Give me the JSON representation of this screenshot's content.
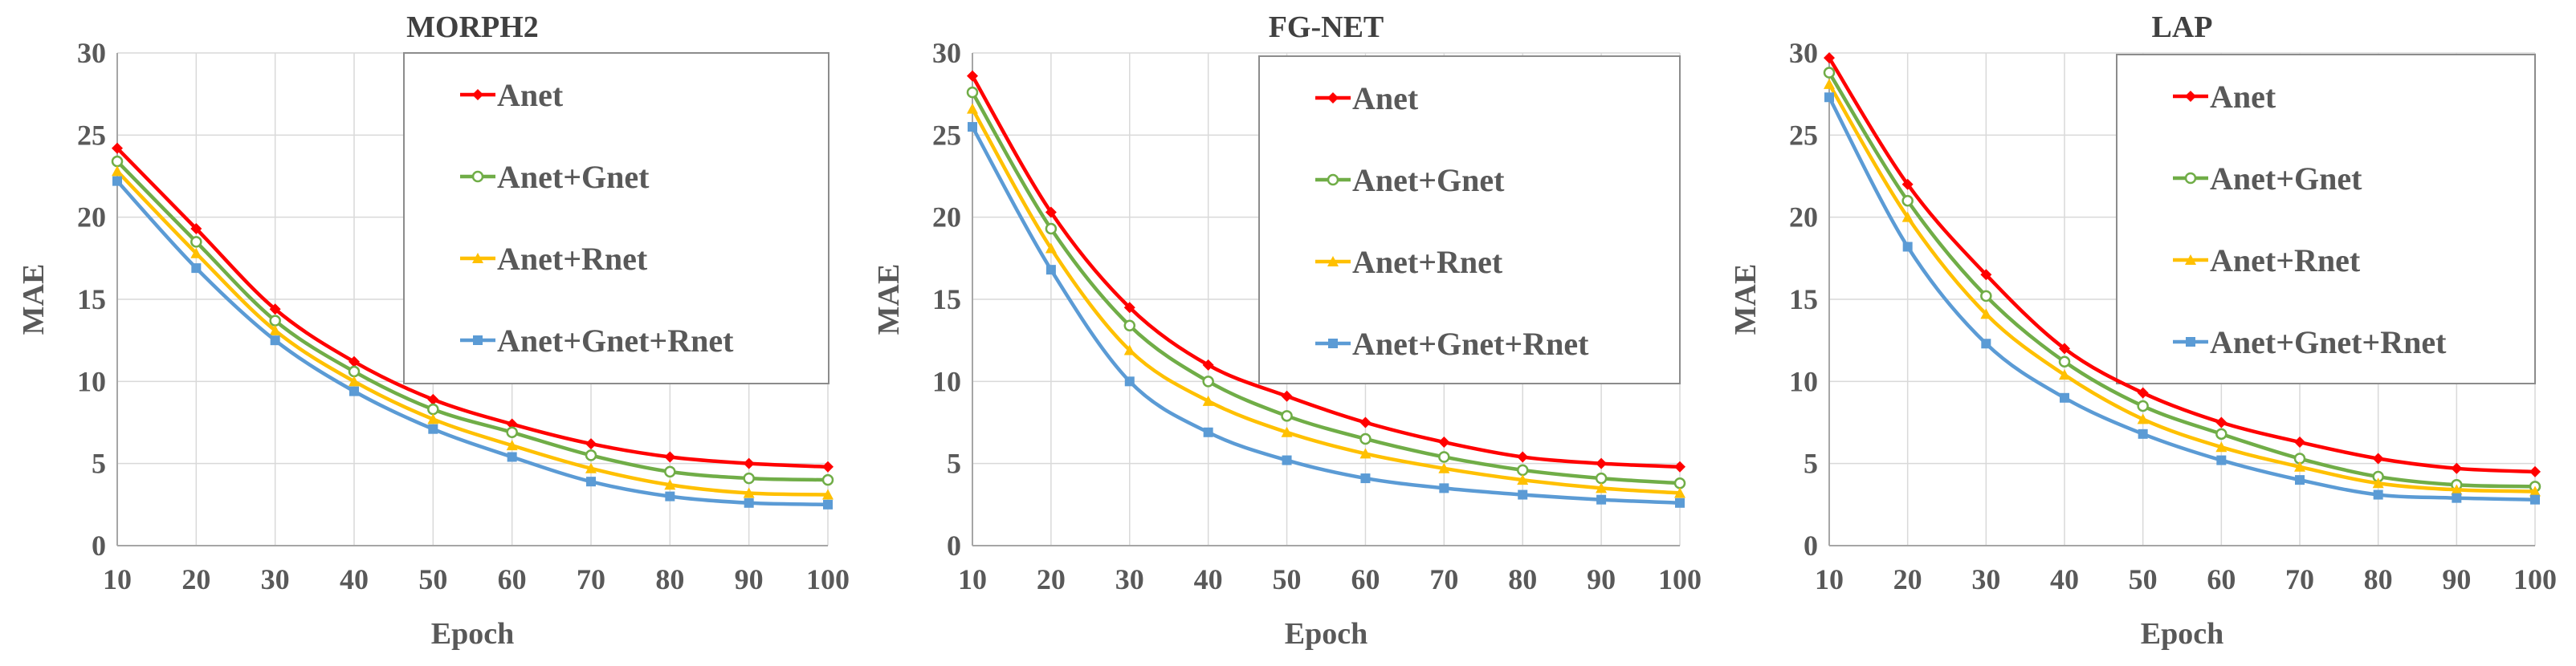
{
  "colors": {
    "Anet": "#ff0000",
    "Anet+Gnet": "#70ad47",
    "Anet+Rnet": "#ffc000",
    "Anet+Gnet+Rnet": "#5b9bd5"
  },
  "chart_data": [
    {
      "type": "line",
      "title": "MORPH2",
      "xlabel": "Epoch",
      "ylabel": "MAE",
      "x": [
        10,
        20,
        30,
        40,
        50,
        60,
        70,
        80,
        90,
        100
      ],
      "xlim": [
        10,
        100
      ],
      "ylim": [
        0,
        30
      ],
      "yticks": [
        0,
        5,
        10,
        15,
        20,
        25,
        30
      ],
      "legend_position": "top-right",
      "series": [
        {
          "name": "Anet",
          "marker": "diamond",
          "values": [
            24.2,
            19.3,
            14.4,
            11.2,
            8.9,
            7.4,
            6.2,
            5.4,
            5.0,
            4.8
          ]
        },
        {
          "name": "Anet+Gnet",
          "marker": "circle",
          "values": [
            23.4,
            18.5,
            13.7,
            10.6,
            8.3,
            6.9,
            5.5,
            4.5,
            4.1,
            4.0
          ]
        },
        {
          "name": "Anet+Rnet",
          "marker": "triangle",
          "values": [
            22.8,
            17.8,
            13.1,
            10.0,
            7.7,
            6.1,
            4.7,
            3.7,
            3.2,
            3.1
          ]
        },
        {
          "name": "Anet+Gnet+Rnet",
          "marker": "square",
          "values": [
            22.2,
            16.9,
            12.5,
            9.4,
            7.1,
            5.4,
            3.9,
            3.0,
            2.6,
            2.5
          ]
        }
      ]
    },
    {
      "type": "line",
      "title": "FG-NET",
      "xlabel": "Epoch",
      "ylabel": "MAE",
      "x": [
        10,
        20,
        30,
        40,
        50,
        60,
        70,
        80,
        90,
        100
      ],
      "xlim": [
        10,
        100
      ],
      "ylim": [
        0,
        30
      ],
      "yticks": [
        0,
        5,
        10,
        15,
        20,
        25,
        30
      ],
      "legend_position": "top-right",
      "series": [
        {
          "name": "Anet",
          "marker": "diamond",
          "values": [
            28.6,
            20.3,
            14.5,
            11.0,
            9.1,
            7.5,
            6.3,
            5.4,
            5.0,
            4.8
          ]
        },
        {
          "name": "Anet+Gnet",
          "marker": "circle",
          "values": [
            27.6,
            19.3,
            13.4,
            10.0,
            7.9,
            6.5,
            5.4,
            4.6,
            4.1,
            3.8
          ]
        },
        {
          "name": "Anet+Rnet",
          "marker": "triangle",
          "values": [
            26.6,
            18.1,
            11.9,
            8.8,
            6.9,
            5.6,
            4.7,
            4.0,
            3.5,
            3.2
          ]
        },
        {
          "name": "Anet+Gnet+Rnet",
          "marker": "square",
          "values": [
            25.5,
            16.8,
            10.0,
            6.9,
            5.2,
            4.1,
            3.5,
            3.1,
            2.8,
            2.6
          ]
        }
      ]
    },
    {
      "type": "line",
      "title": "LAP",
      "xlabel": "Epoch",
      "ylabel": "MAE",
      "x": [
        10,
        20,
        30,
        40,
        50,
        60,
        70,
        80,
        90,
        100
      ],
      "xlim": [
        10,
        100
      ],
      "ylim": [
        0,
        30
      ],
      "yticks": [
        0,
        5,
        10,
        15,
        20,
        25,
        30
      ],
      "legend_position": "top-right",
      "series": [
        {
          "name": "Anet",
          "marker": "diamond",
          "values": [
            29.7,
            22.0,
            16.5,
            12.0,
            9.3,
            7.5,
            6.3,
            5.3,
            4.7,
            4.5
          ]
        },
        {
          "name": "Anet+Gnet",
          "marker": "circle",
          "values": [
            28.8,
            21.0,
            15.2,
            11.2,
            8.5,
            6.8,
            5.3,
            4.2,
            3.7,
            3.6
          ]
        },
        {
          "name": "Anet+Rnet",
          "marker": "triangle",
          "values": [
            28.1,
            20.0,
            14.1,
            10.4,
            7.7,
            6.0,
            4.8,
            3.8,
            3.4,
            3.3
          ]
        },
        {
          "name": "Anet+Gnet+Rnet",
          "marker": "square",
          "values": [
            27.3,
            18.2,
            12.3,
            9.0,
            6.8,
            5.2,
            4.0,
            3.1,
            2.9,
            2.8
          ]
        }
      ]
    }
  ]
}
